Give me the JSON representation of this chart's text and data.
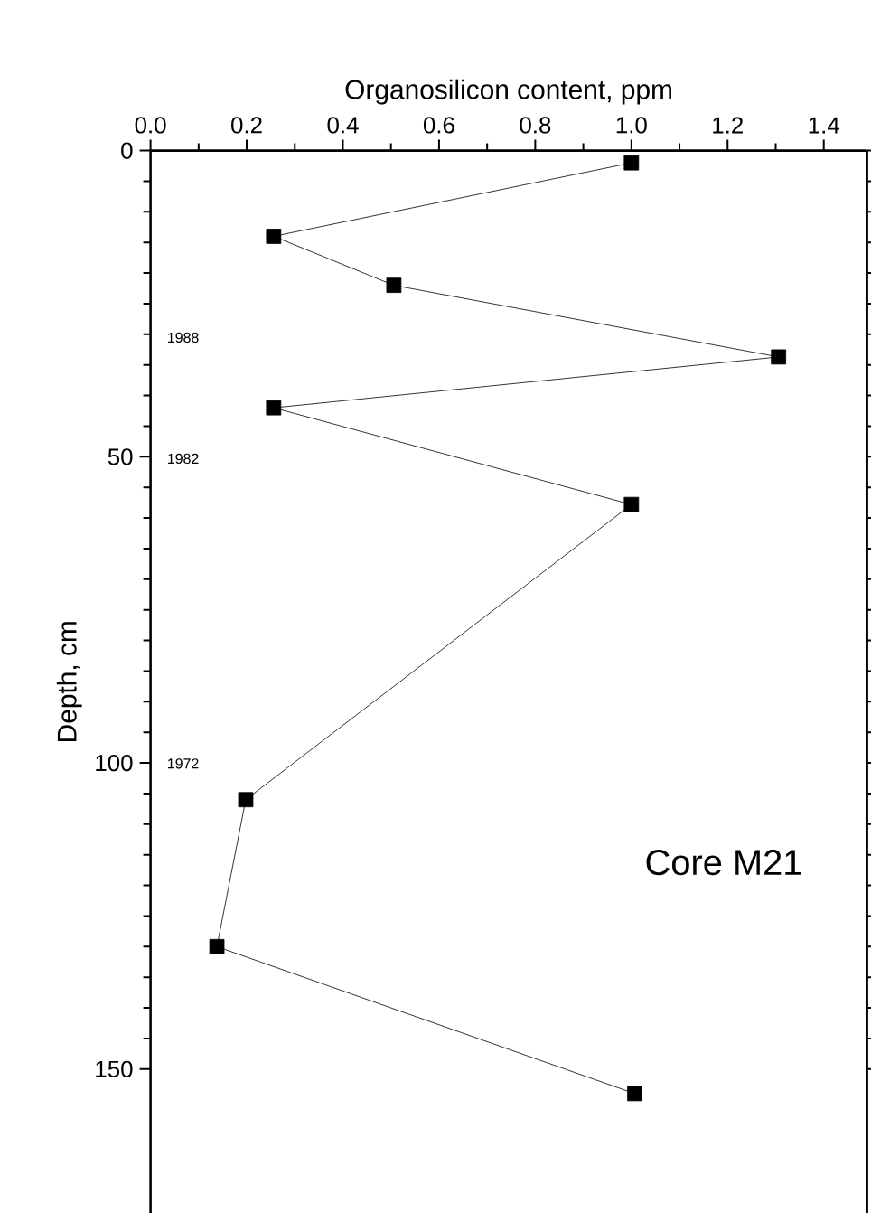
{
  "chart_data": {
    "type": "line",
    "xlabel": "Organosilicon content, ppm",
    "ylabel": "Depth, cm",
    "x": [
      1.0,
      0.256,
      0.506,
      1.306,
      0.256,
      1.0,
      0.198,
      0.138,
      1.007
    ],
    "values": [
      2,
      14,
      22,
      33.7,
      42,
      57.8,
      106,
      130,
      154
    ],
    "color": "#000000",
    "marker": "square",
    "line_style": "solid",
    "xlim": [
      0,
      1.49
    ],
    "xticks": [
      {
        "value": 0,
        "label": "0.0"
      },
      0.2,
      0.4,
      0.6,
      0.8,
      {
        "value": 1,
        "label": "1.0"
      },
      1.2,
      1.4
    ],
    "ylim": [
      173.5,
      0
    ],
    "yticks": [
      0,
      50,
      100,
      150
    ],
    "grid": false,
    "annotations": [
      "1988",
      "1982",
      "1972",
      "Core M21"
    ]
  }
}
